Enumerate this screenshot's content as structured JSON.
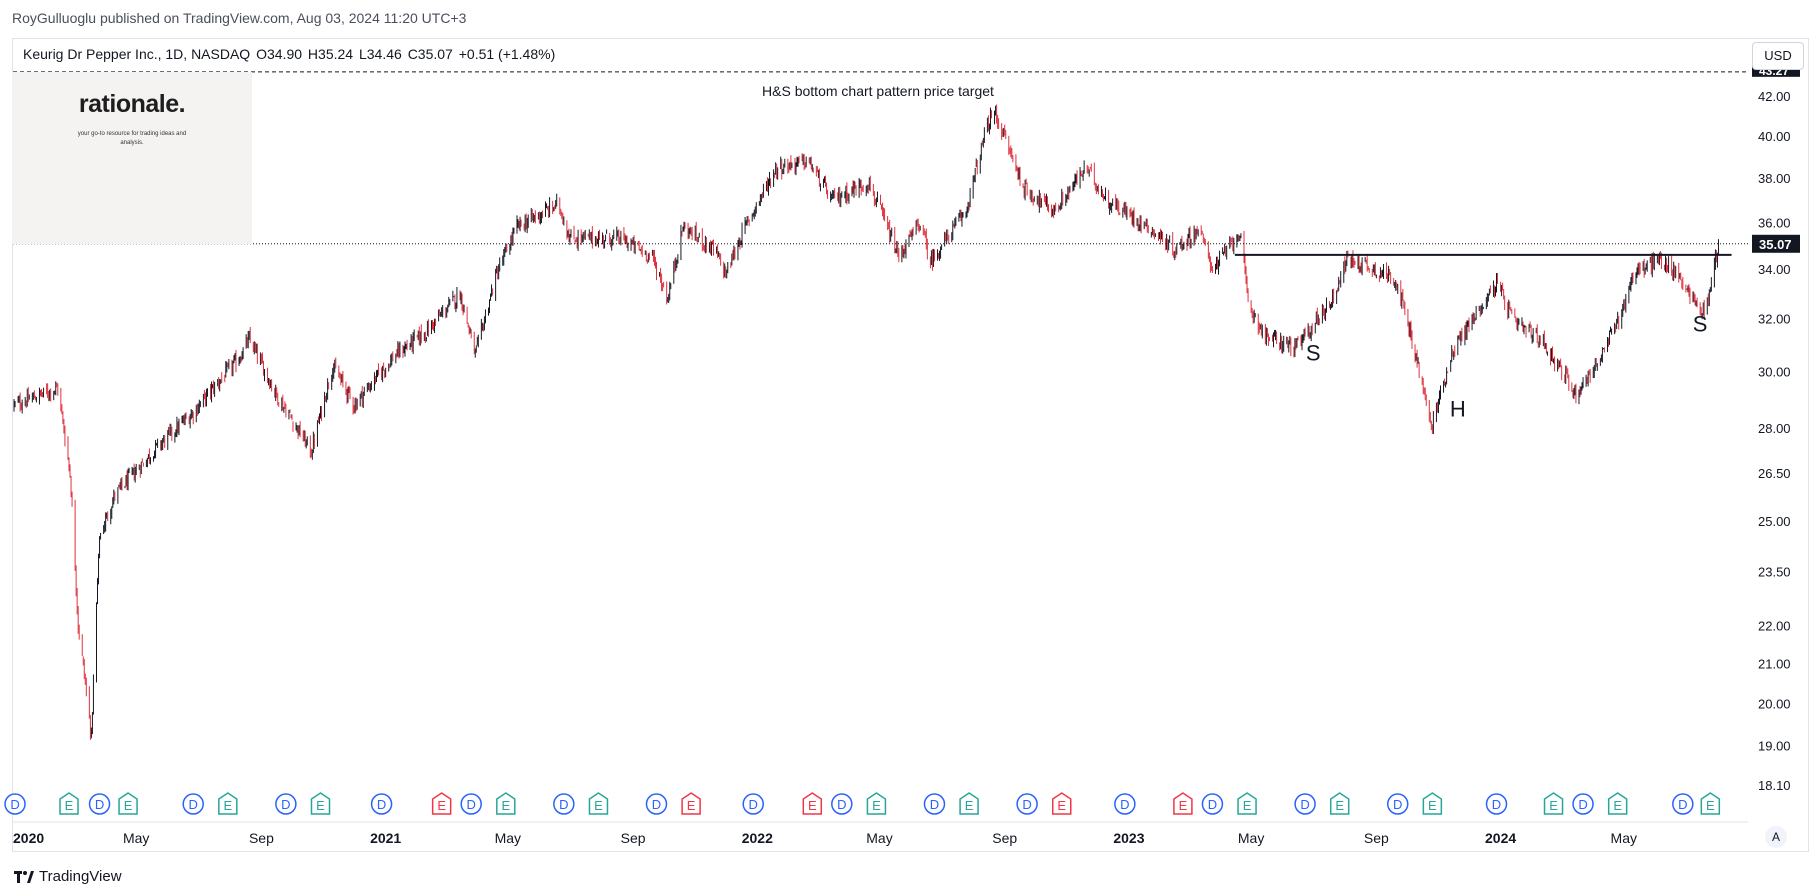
{
  "header": {
    "publisher": "RoyGulluoglu published on TradingView.com, Aug 03, 2024 11:20 UTC+3",
    "symbol": "Keurig Dr Pepper Inc., 1D, NASDAQ",
    "open": "O34.90",
    "high": "H35.24",
    "low": "L34.46",
    "close": "C35.07",
    "change": "+0.51 (+1.48%)",
    "currency": "USD"
  },
  "logo": {
    "title": "rationale.",
    "subtitle": "your go-to resource for trading ideas and analysis."
  },
  "footer": {
    "brand": "TradingView",
    "auto_label": "A"
  },
  "colors": {
    "up": "#131722",
    "down": "#e0303c",
    "dividend": "#2962ff",
    "earnings_beat": "#26a69a",
    "earnings_miss": "#f23645"
  },
  "chart_data": {
    "type": "candlestick",
    "title": "",
    "price_scale": "log",
    "ylim": [
      17.6,
      43.9
    ],
    "y_ticks": [
      "42.00",
      "40.00",
      "38.00",
      "36.00",
      "34.00",
      "32.00",
      "30.00",
      "28.00",
      "26.50",
      "25.00",
      "23.50",
      "22.00",
      "21.00",
      "20.00",
      "19.00",
      "18.10"
    ],
    "x_ticks": [
      {
        "label": "2020",
        "date": "2020-01-01",
        "year": true
      },
      {
        "label": "May",
        "date": "2020-05-01"
      },
      {
        "label": "Sep",
        "date": "2020-09-01"
      },
      {
        "label": "2021",
        "date": "2021-01-01",
        "year": true
      },
      {
        "label": "May",
        "date": "2021-05-01"
      },
      {
        "label": "Sep",
        "date": "2021-09-01"
      },
      {
        "label": "2022",
        "date": "2022-01-01",
        "year": true
      },
      {
        "label": "May",
        "date": "2022-05-01"
      },
      {
        "label": "Sep",
        "date": "2022-09-01"
      },
      {
        "label": "2023",
        "date": "2023-01-01",
        "year": true
      },
      {
        "label": "May",
        "date": "2023-05-01"
      },
      {
        "label": "Sep",
        "date": "2023-09-01"
      },
      {
        "label": "2024",
        "date": "2024-01-01",
        "year": true
      },
      {
        "label": "May",
        "date": "2024-05-01"
      }
    ],
    "last_price": "35.07",
    "target_price": "43.27",
    "target_label": "H&S bottom chart pattern price target",
    "neckline": {
      "price": 34.6,
      "start": "2023-04-15",
      "end": "2024-08-05"
    },
    "pattern_labels": [
      {
        "text": "S",
        "date": "2023-07-01",
        "price": 30.4
      },
      {
        "text": "H",
        "date": "2023-11-20",
        "price": 28.4
      },
      {
        "text": "S",
        "date": "2024-07-15",
        "price": 31.5
      }
    ],
    "price_path": [
      [
        "2020-01-02",
        28.8
      ],
      [
        "2020-02-14",
        29.4
      ],
      [
        "2020-02-26",
        26.5
      ],
      [
        "2020-03-05",
        22.0
      ],
      [
        "2020-03-18",
        19.2
      ],
      [
        "2020-03-26",
        24.5
      ],
      [
        "2020-04-10",
        25.8
      ],
      [
        "2020-05-20",
        27.3
      ],
      [
        "2020-06-25",
        28.5
      ],
      [
        "2020-08-10",
        30.5
      ],
      [
        "2020-08-20",
        31.2
      ],
      [
        "2020-09-15",
        29.2
      ],
      [
        "2020-10-20",
        27.2
      ],
      [
        "2020-11-10",
        30.2
      ],
      [
        "2020-12-01",
        28.8
      ],
      [
        "2021-01-10",
        30.6
      ],
      [
        "2021-02-10",
        31.5
      ],
      [
        "2021-03-15",
        33.0
      ],
      [
        "2021-03-30",
        30.6
      ],
      [
        "2021-04-20",
        33.8
      ],
      [
        "2021-05-10",
        35.8
      ],
      [
        "2021-06-20",
        36.8
      ],
      [
        "2021-07-01",
        35.3
      ],
      [
        "2021-08-20",
        35.3
      ],
      [
        "2021-09-20",
        34.5
      ],
      [
        "2021-10-05",
        32.8
      ],
      [
        "2021-10-20",
        35.8
      ],
      [
        "2021-11-20",
        34.8
      ],
      [
        "2021-12-01",
        33.8
      ],
      [
        "2021-12-20",
        35.8
      ],
      [
        "2022-01-20",
        38.5
      ],
      [
        "2022-02-20",
        38.8
      ],
      [
        "2022-03-15",
        37.0
      ],
      [
        "2022-04-20",
        37.8
      ],
      [
        "2022-05-20",
        34.5
      ],
      [
        "2022-06-10",
        36.0
      ],
      [
        "2022-06-20",
        34.3
      ],
      [
        "2022-07-25",
        36.5
      ],
      [
        "2022-08-15",
        40.5
      ],
      [
        "2022-08-22",
        41.2
      ],
      [
        "2022-09-20",
        37.5
      ],
      [
        "2022-10-20",
        36.5
      ],
      [
        "2022-11-20",
        38.5
      ],
      [
        "2022-12-10",
        37.0
      ],
      [
        "2023-01-20",
        35.8
      ],
      [
        "2023-02-15",
        34.8
      ],
      [
        "2023-03-10",
        35.7
      ],
      [
        "2023-03-25",
        34.0
      ],
      [
        "2023-04-20",
        35.6
      ],
      [
        "2023-04-28",
        32.6
      ],
      [
        "2023-05-15",
        31.3
      ],
      [
        "2023-06-15",
        30.9
      ],
      [
        "2023-07-20",
        32.8
      ],
      [
        "2023-08-03",
        34.4
      ],
      [
        "2023-08-20",
        34.2
      ],
      [
        "2023-09-20",
        33.6
      ],
      [
        "2023-10-10",
        30.5
      ],
      [
        "2023-10-25",
        28.0
      ],
      [
        "2023-11-15",
        30.8
      ],
      [
        "2023-12-10",
        32.3
      ],
      [
        "2023-12-28",
        33.4
      ],
      [
        "2024-01-15",
        31.8
      ],
      [
        "2024-02-10",
        31.2
      ],
      [
        "2024-03-15",
        29.2
      ],
      [
        "2024-04-10",
        30.6
      ],
      [
        "2024-04-30",
        32.4
      ],
      [
        "2024-05-10",
        33.8
      ],
      [
        "2024-06-05",
        34.4
      ],
      [
        "2024-06-25",
        33.7
      ],
      [
        "2024-07-15",
        32.3
      ],
      [
        "2024-07-22",
        32.6
      ],
      [
        "2024-08-02",
        35.07
      ]
    ],
    "events": [
      {
        "type": "D",
        "date": "2020-01-03"
      },
      {
        "type": "E",
        "date": "2020-02-25"
      },
      {
        "type": "D",
        "date": "2020-03-26"
      },
      {
        "type": "E",
        "date": "2020-04-23"
      },
      {
        "type": "D",
        "date": "2020-06-26"
      },
      {
        "type": "E",
        "date": "2020-07-30"
      },
      {
        "type": "D",
        "date": "2020-09-25"
      },
      {
        "type": "E",
        "date": "2020-10-29"
      },
      {
        "type": "D",
        "date": "2020-12-28"
      },
      {
        "type": "E-miss",
        "date": "2021-02-25"
      },
      {
        "type": "D",
        "date": "2021-03-26"
      },
      {
        "type": "E",
        "date": "2021-04-29"
      },
      {
        "type": "D",
        "date": "2021-06-25"
      },
      {
        "type": "E",
        "date": "2021-07-29"
      },
      {
        "type": "D",
        "date": "2021-09-24"
      },
      {
        "type": "E-miss",
        "date": "2021-10-28"
      },
      {
        "type": "D",
        "date": "2021-12-28"
      },
      {
        "type": "E-miss",
        "date": "2022-02-24"
      },
      {
        "type": "D",
        "date": "2022-03-25"
      },
      {
        "type": "E",
        "date": "2022-04-28"
      },
      {
        "type": "D",
        "date": "2022-06-24"
      },
      {
        "type": "E",
        "date": "2022-07-28"
      },
      {
        "type": "D",
        "date": "2022-09-23"
      },
      {
        "type": "E-miss",
        "date": "2022-10-27"
      },
      {
        "type": "D",
        "date": "2022-12-28"
      },
      {
        "type": "E-miss",
        "date": "2023-02-23"
      },
      {
        "type": "D",
        "date": "2023-03-24"
      },
      {
        "type": "E",
        "date": "2023-04-27"
      },
      {
        "type": "D",
        "date": "2023-06-23"
      },
      {
        "type": "E",
        "date": "2023-07-27"
      },
      {
        "type": "D",
        "date": "2023-09-22"
      },
      {
        "type": "E",
        "date": "2023-10-26"
      },
      {
        "type": "D",
        "date": "2023-12-28"
      },
      {
        "type": "E",
        "date": "2024-02-22"
      },
      {
        "type": "D",
        "date": "2024-03-22"
      },
      {
        "type": "E",
        "date": "2024-04-25"
      },
      {
        "type": "D",
        "date": "2024-06-28"
      },
      {
        "type": "E",
        "date": "2024-07-25"
      }
    ]
  }
}
